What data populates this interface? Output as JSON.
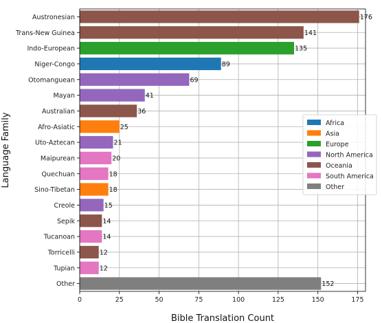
{
  "chart_data": {
    "type": "bar",
    "orientation": "horizontal",
    "xlabel": "Bible Translation Count",
    "ylabel": "Language Family",
    "xlim": [
      0,
      180
    ],
    "xticks": [
      0,
      25,
      50,
      75,
      100,
      125,
      150,
      175
    ],
    "grid": true,
    "legend_position": "right",
    "colors": {
      "Africa": "#1f77b4",
      "Asia": "#ff7f0e",
      "Europe": "#2ca02c",
      "North America": "#9467bd",
      "Oceania": "#8c564b",
      "South America": "#e377c2",
      "Other": "#7f7f7f"
    },
    "legend": [
      "Africa",
      "Asia",
      "Europe",
      "North America",
      "Oceania",
      "South America",
      "Other"
    ],
    "bars": [
      {
        "label": "Austronesian",
        "value": 176,
        "region": "Oceania"
      },
      {
        "label": "Trans-New Guinea",
        "value": 141,
        "region": "Oceania"
      },
      {
        "label": "Indo-European",
        "value": 135,
        "region": "Europe"
      },
      {
        "label": "Niger-Congo",
        "value": 89,
        "region": "Africa"
      },
      {
        "label": "Otomanguean",
        "value": 69,
        "region": "North America"
      },
      {
        "label": "Mayan",
        "value": 41,
        "region": "North America"
      },
      {
        "label": "Australian",
        "value": 36,
        "region": "Oceania"
      },
      {
        "label": "Afro-Asiatic",
        "value": 25,
        "region": "Asia"
      },
      {
        "label": "Uto-Aztecan",
        "value": 21,
        "region": "North America"
      },
      {
        "label": "Maipurean",
        "value": 20,
        "region": "South America"
      },
      {
        "label": "Quechuan",
        "value": 18,
        "region": "South America"
      },
      {
        "label": "Sino-Tibetan",
        "value": 18,
        "region": "Asia"
      },
      {
        "label": "Creole",
        "value": 15,
        "region": "North America"
      },
      {
        "label": "Sepik",
        "value": 14,
        "region": "Oceania"
      },
      {
        "label": "Tucanoan",
        "value": 14,
        "region": "South America"
      },
      {
        "label": "Torricelli",
        "value": 12,
        "region": "Oceania"
      },
      {
        "label": "Tupian",
        "value": 12,
        "region": "South America"
      },
      {
        "label": "Other",
        "value": 152,
        "region": "Other"
      }
    ]
  }
}
